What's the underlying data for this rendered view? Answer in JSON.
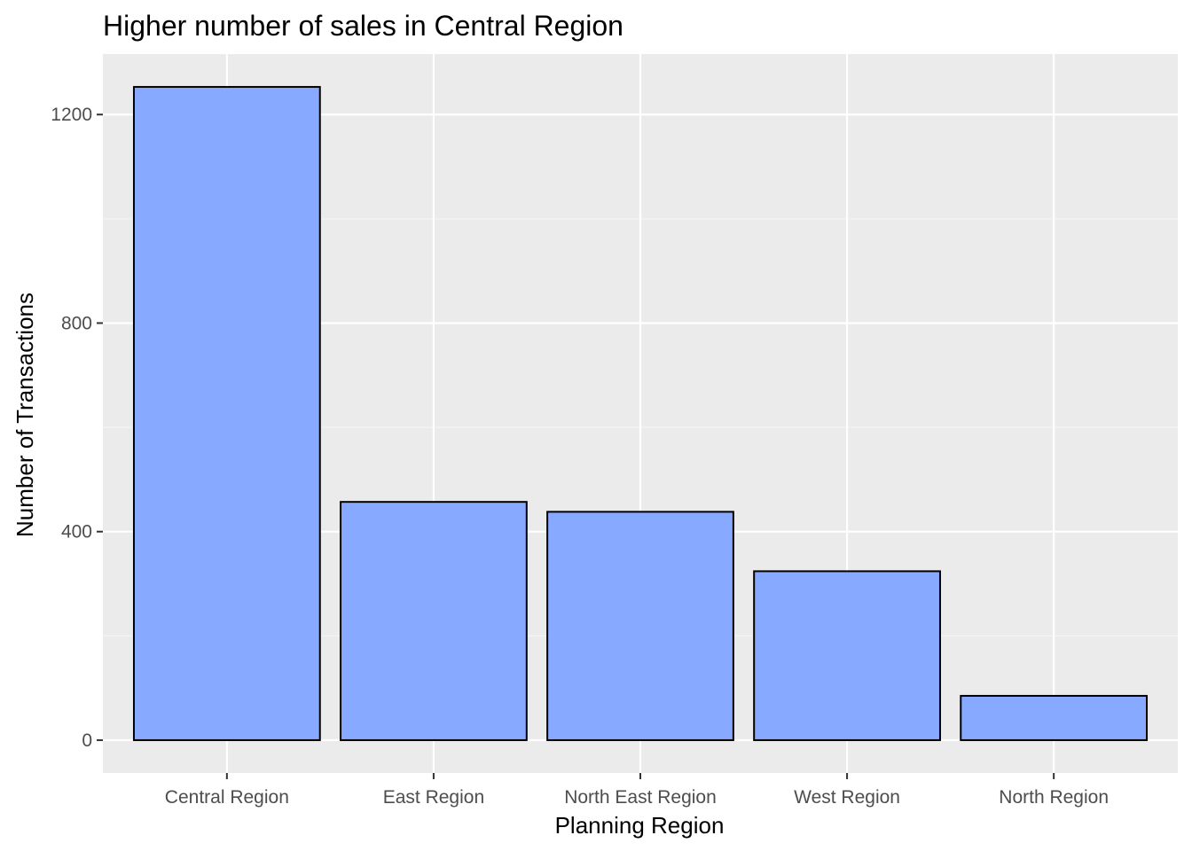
{
  "chart_data": {
    "type": "bar",
    "title": "Higher number of sales in Central Region",
    "xlabel": "Planning Region",
    "ylabel": "Number of Transactions",
    "categories": [
      "Central Region",
      "East Region",
      "North East Region",
      "West Region",
      "North Region"
    ],
    "values": [
      1253,
      457,
      438,
      324,
      85
    ],
    "ylim": [
      -63,
      1316
    ],
    "yticks": [
      0,
      400,
      800,
      1200
    ],
    "ytick_labels": [
      "0",
      "400",
      "800",
      "1200"
    ],
    "grid": true,
    "legend": "none",
    "colors": {
      "bar_fill": "#87A9FF",
      "bar_stroke": "#000000",
      "panel_bg": "#EBEBEB",
      "grid_major": "#FFFFFF",
      "grid_minor": "#F5F5F5",
      "tick_label": "#4D4D4D"
    }
  }
}
